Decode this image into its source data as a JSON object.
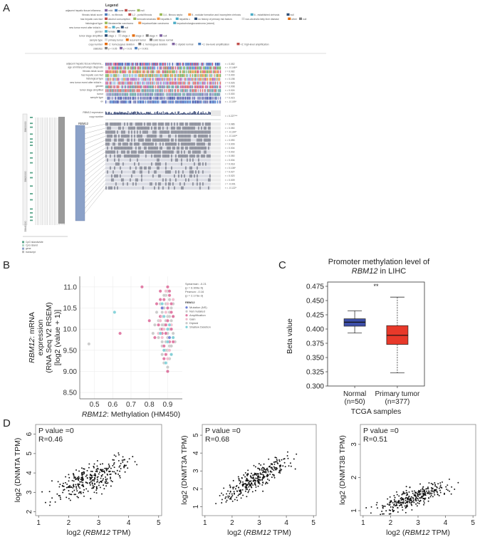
{
  "panels": {
    "A": "A",
    "B": "B",
    "C": "C",
    "D": "D"
  },
  "panel_a": {
    "legend_title": "Legend",
    "legend_rows": [
      "adjacent hepatic tissue inflamma...",
      "fibrosis ishak score",
      "has hepatic carc fact",
      "histological type",
      "new tumor event after initial tr...",
      "gender",
      "tumor stage simplified",
      "sample type",
      "copy number",
      "statistics"
    ],
    "legend_items": [
      [
        "mild",
        "none",
        "severe",
        "null"
      ],
      [
        "0 - no fibrosis",
        "1,2 - portal fibrosis",
        "3,4 - fibrous septa",
        "5 - nodular formation and incomplete cirrhosis",
        "6 - established cirrhosis",
        "null"
      ],
      [
        "alcohol consumption",
        "hemochromatosis",
        "hepatitis b",
        "hepatitis c",
        "no history of primary risk factors",
        "non-alcoholic fatty liver disease",
        "other",
        "null"
      ],
      [
        "fibrolamellar carcinoma",
        "hepatocellular carcinoma",
        "hepatocholangiocarcinoma (mixed)"
      ],
      [
        "no",
        "yes",
        "null"
      ],
      [
        "female",
        "male"
      ],
      [
        "stage 1",
        "stage 2",
        "stage 3",
        "stage 4",
        "null"
      ],
      [
        "primary tumor",
        "recurrent tumor",
        "solid tissue normal"
      ],
      [
        "-2: homozygous deletion",
        "-1: hemizygous deletion",
        "0: diploid normal",
        "+1: low-level amplification",
        "+2: high-level amplification"
      ],
      [
        "p < 0.05",
        "p < 0.01",
        "p < 0.001"
      ]
    ],
    "track_labels": [
      "adjacent hepatic tissue inflamma...",
      "age at initial pathologic diagnosis",
      "fibrosis ishak score",
      "has hepatic carc fact",
      "histological type",
      "new tumor event after initial tr...",
      "gender",
      "tumor stage simplified",
      "tumor",
      "sample type",
      "ev"
    ],
    "track_stats": [
      "r = 0.052",
      "r = -0.146**",
      "r = 0.082",
      "r = 0.000",
      "r = 0.198",
      "r = 0.026",
      "r = 0.008",
      "r = 0.024",
      "r = 0.000",
      "r = 0.015",
      "r = -0.109*"
    ],
    "expr_labels": [
      "RBM12 expression",
      "copy number"
    ],
    "expr_stat": "r = 0.227***",
    "gene_label": "RBM12",
    "methyl_stats": [
      "r = 0.086",
      "r = 0.050",
      "r = -0.104*",
      "r = -0.144**",
      "r = 0.090",
      "r = 0.009",
      "r = 0.004",
      "r = 0.002",
      "r = 0.050",
      "r = 0.004",
      "r = 0.018",
      "r = 0.108*",
      "r = 0.027",
      "r = 0.020",
      "r = 0.009",
      "r = -0.001",
      "r = -0.122*"
    ],
    "coord_ticks": [
      "35600000",
      "35620000",
      "35640000"
    ],
    "small_legend": [
      "CpG islands/site",
      "CpG island",
      "gene",
      "transcript"
    ]
  },
  "chart_data": [
    {
      "panel": "B",
      "type": "scatter",
      "xlabel_italic": "RBM12",
      "xlabel_rest": ": Methylation (HM450)",
      "ylabel_lines": [
        "RBM12: mRNA",
        "expression",
        "(RNA Seq V2 RSEM)",
        "[log2 (value + 1)]"
      ],
      "xticks": [
        "0.5",
        "0.6",
        "0.7",
        "0.8",
        "0.9"
      ],
      "yticks": [
        "8.50",
        "9.00",
        "9.50",
        "10.0",
        "10.5",
        "11.0"
      ],
      "xlim": [
        0.42,
        0.98
      ],
      "ylim": [
        8.35,
        11.25
      ],
      "stats": [
        "Spearman: -0.21",
        "(p = 6.909e-5)",
        "Pearson: -0.16",
        "(p = 2.173e-3)"
      ],
      "legend_title": "RBM12",
      "legend": [
        {
          "label": "Mutation (NS)",
          "color": "#6b7fd7"
        },
        {
          "label": "Not mutated",
          "color": "#c9c9c9"
        },
        {
          "label": "Amplification",
          "color": "#e07aa4"
        },
        {
          "label": "Gain",
          "color": "#f0b7ca"
        },
        {
          "label": "Diploid",
          "color": "#c9c9c9"
        },
        {
          "label": "Shallow Deletion",
          "color": "#7ed0d8"
        }
      ],
      "series": [
        {
          "name": "Diploid",
          "color": "#c7c7c7",
          "x": [
            0.86,
            0.88,
            0.9,
            0.91,
            0.92,
            0.87,
            0.89,
            0.93,
            0.85,
            0.9,
            0.88,
            0.91,
            0.86,
            0.92,
            0.89,
            0.87,
            0.9,
            0.93,
            0.88,
            0.91,
            0.84,
            0.89,
            0.92,
            0.86,
            0.9,
            0.87,
            0.91,
            0.88,
            0.93,
            0.85,
            0.9,
            0.92,
            0.89,
            0.86,
            0.88,
            0.91,
            0.83,
            0.9,
            0.87,
            0.92,
            0.89,
            0.94,
            0.86,
            0.88,
            0.91,
            0.9,
            0.82,
            0.87,
            0.93,
            0.89
          ],
          "y": [
            10.3,
            10.1,
            9.9,
            10.4,
            10.0,
            9.7,
            10.6,
            9.8,
            10.2,
            9.5,
            10.5,
            9.6,
            9.9,
            10.2,
            10.8,
            9.4,
            10.3,
            9.9,
            9.2,
            10.7,
            10.4,
            9.7,
            10.5,
            10.0,
            10.9,
            9.6,
            9.3,
            10.1,
            10.3,
            9.8,
            9.1,
            9.6,
            10.2,
            10.6,
            9.5,
            10.0,
            10.1,
            9.8,
            10.4,
            9.4,
            9.9,
            9.7,
            10.2,
            10.8,
            10.3,
            9.0,
            9.9,
            10.1,
            10.6,
            9.5
          ]
        },
        {
          "name": "Amplification",
          "color": "#de6f9c",
          "x": [
            0.88,
            0.9,
            0.86,
            0.92,
            0.89,
            0.87,
            0.91,
            0.85,
            0.93,
            0.9,
            0.88,
            0.84,
            0.92,
            0.86,
            0.89,
            0.91,
            0.87,
            0.9,
            0.8,
            0.83,
            0.93,
            0.88,
            0.86,
            0.91,
            0.89,
            0.76,
            0.64,
            0.9,
            0.87,
            0.92
          ],
          "y": [
            10.7,
            10.2,
            10.9,
            10.4,
            9.9,
            10.5,
            10.8,
            10.1,
            9.7,
            11.0,
            9.6,
            10.6,
            10.0,
            10.3,
            9.4,
            10.9,
            9.9,
            10.5,
            10.2,
            9.8,
            10.3,
            9.3,
            10.7,
            9.7,
            10.1,
            11.0,
            9.9,
            9.0,
            10.0,
            10.6
          ]
        },
        {
          "name": "Gain",
          "color": "#f2b8cb",
          "x": [
            0.89,
            0.87,
            0.9,
            0.92,
            0.86,
            0.91,
            0.88,
            0.93,
            0.85,
            0.9,
            0.87,
            0.89
          ],
          "y": [
            10.4,
            9.8,
            10.6,
            10.1,
            10.2,
            9.5,
            10.0,
            10.7,
            9.9,
            9.3,
            10.3,
            10.9
          ]
        },
        {
          "name": "Shallow Deletion",
          "color": "#7ccfd7",
          "x": [
            0.9,
            0.88,
            0.92,
            0.86,
            0.91,
            0.89,
            0.87,
            0.93,
            0.9,
            0.61,
            0.88
          ],
          "y": [
            9.7,
            10.3,
            9.4,
            9.9,
            10.1,
            9.2,
            10.6,
            9.8,
            10.0,
            10.4,
            9.5
          ]
        },
        {
          "name": "Mutation (NS)",
          "color": "#6b7fd7",
          "x": [
            0.87,
            0.91
          ],
          "y": [
            10.5,
            9.8
          ]
        },
        {
          "name": "Outlier",
          "color": "#c7c7c7",
          "x": [
            0.47
          ],
          "y": [
            9.65
          ]
        }
      ]
    },
    {
      "panel": "C",
      "type": "boxplot",
      "title_line1": "Promoter methylation level of",
      "title_line2": "RBM12 in LIHC",
      "ylabel": "Beta value",
      "xlabel": "TCGA samples",
      "ylim": [
        0.3,
        0.475
      ],
      "yticks": [
        "0.300",
        "0.325",
        "0.350",
        "0.375",
        "0.400",
        "0.425",
        "0.450",
        "0.475"
      ],
      "significance": "**",
      "groups": [
        {
          "label": "Normal",
          "n": "(n=50)",
          "min": 0.393,
          "q1": 0.405,
          "median": 0.412,
          "q3": 0.418,
          "max": 0.432,
          "color": "#3d4fa8"
        },
        {
          "label": "Primary tumor",
          "n": "(n=377)",
          "min": 0.323,
          "q1": 0.373,
          "median": 0.389,
          "q3": 0.406,
          "max": 0.456,
          "color": "#e8392a"
        }
      ]
    },
    {
      "panel": "D",
      "type": "scatter",
      "plots": [
        {
          "pvalue": "P value =0",
          "r": "R=0.46",
          "ylabel_pre": "log2 (DNMTA TPM)",
          "xlabel_pre": "log2 (",
          "xlabel_gene": "RBM12",
          "xlabel_post": " TPM)",
          "xlim": [
            0.9,
            5.1
          ],
          "ylim": [
            1.8,
            6.5
          ],
          "xticks": [
            "1",
            "2",
            "3",
            "4",
            "5"
          ],
          "yticks": [
            "2",
            "3",
            "4",
            "5",
            "6"
          ],
          "slope": 0.55,
          "intercept": 2.2,
          "noise": 0.7,
          "seed": 7
        },
        {
          "pvalue": "P value =0",
          "r": "R=0.68",
          "ylabel_pre": "log2 (DNMT3A TPM)",
          "xlabel_pre": "log2 (",
          "xlabel_gene": "RBM12",
          "xlabel_post": " TPM)",
          "xlim": [
            0.9,
            5.1
          ],
          "ylim": [
            0.5,
            5.6
          ],
          "xticks": [
            "1",
            "2",
            "3",
            "4",
            "5"
          ],
          "yticks": [
            "1",
            "2",
            "3",
            "4",
            "5"
          ],
          "slope": 0.85,
          "intercept": 0.1,
          "noise": 0.6,
          "seed": 13
        },
        {
          "pvalue": "P value =0",
          "r": "R=0.51",
          "ylabel_pre": "log2 (DNMT3B TPM)",
          "xlabel_pre": "log2 (",
          "xlabel_gene": "RBM12",
          "xlabel_post": " TPM)",
          "xlim": [
            0.9,
            5.1
          ],
          "ylim": [
            0.85,
            3.6
          ],
          "xticks": [
            "1",
            "2",
            "3",
            "4",
            "5"
          ],
          "yticks": [
            "1",
            "2",
            "3"
          ],
          "slope": 0.28,
          "intercept": 0.6,
          "noise": 0.28,
          "seed": 29
        }
      ]
    }
  ]
}
